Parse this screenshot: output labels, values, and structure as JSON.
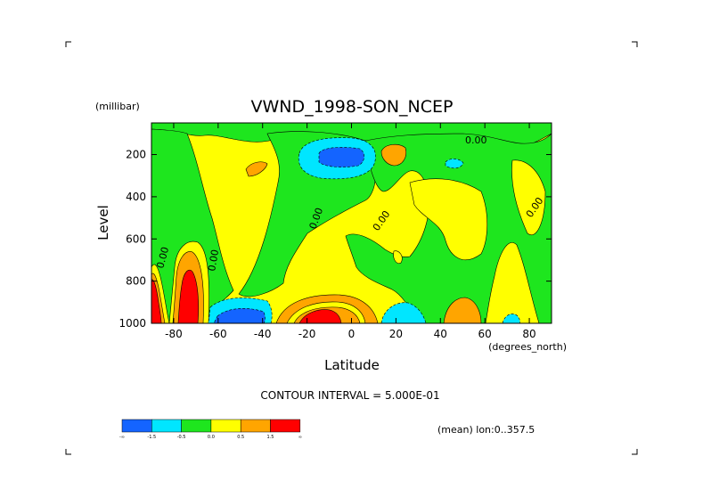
{
  "chart_data": {
    "type": "contour",
    "title": "VWND_1998-SON_NCEP",
    "xlabel": "Latitude",
    "x_units": "(degrees_north)",
    "ylabel": "Level",
    "y_units": "(millibar)",
    "xlim": [
      -90,
      90
    ],
    "ylim": [
      1000,
      50
    ],
    "x_ticks": [
      -80,
      -60,
      -40,
      -20,
      0,
      20,
      40,
      60,
      80
    ],
    "y_ticks": [
      200,
      400,
      600,
      800,
      1000
    ],
    "contour_interval_text": "CONTOUR INTERVAL = 5.000E-01",
    "mean_text": "(mean) lon:0..357.5",
    "contour_label": "0.00",
    "colorbar": {
      "colors": [
        "#1464ff",
        "#00e6ff",
        "#1ee61e",
        "#ffff00",
        "#ffa500",
        "#ff0000"
      ],
      "labels": [
        "-∞",
        "-1.5",
        "-0.5",
        "0.0",
        "0.5",
        "1.5",
        "∞"
      ]
    },
    "regions": [
      {
        "name": "upper-blue-jet",
        "level": -1.5,
        "center": [
          -10,
          180
        ]
      },
      {
        "name": "upper-cyan-jet",
        "level": -1.0,
        "center": [
          -10,
          190
        ]
      },
      {
        "name": "south-polar-red-1",
        "level": 2.0,
        "center": [
          -86,
          900
        ]
      },
      {
        "name": "south-polar-red-2",
        "level": 2.0,
        "center": [
          -74,
          880
        ]
      },
      {
        "name": "equatorial-red",
        "level": 1.5,
        "center": [
          -15,
          975
        ]
      },
      {
        "name": "southern-blue-surface",
        "level": -1.5,
        "center": [
          -52,
          990
        ]
      },
      {
        "name": "north-cyan-surface",
        "level": -1.0,
        "center": [
          18,
          975
        ]
      },
      {
        "name": "north-orange-surface",
        "level": 0.8,
        "center": [
          50,
          970
        ]
      },
      {
        "name": "upper-orange-1",
        "level": 0.8,
        "center": [
          -42,
          240
        ]
      },
      {
        "name": "upper-orange-2",
        "level": 0.8,
        "center": [
          20,
          170
        ]
      },
      {
        "name": "upper-cyan-small",
        "level": -1.0,
        "center": [
          48,
          205
        ]
      }
    ]
  }
}
